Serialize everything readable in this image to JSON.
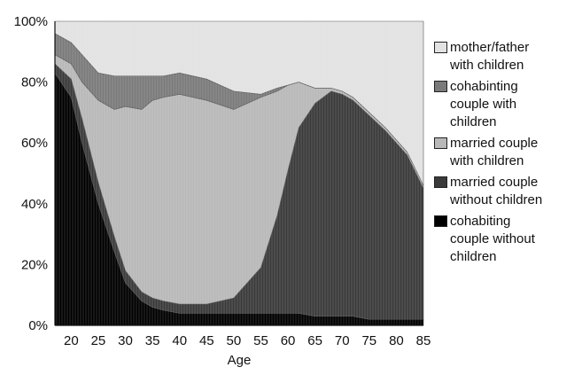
{
  "chart_data": {
    "type": "area",
    "stacked": true,
    "normalized_percent": true,
    "xlabel": "Age",
    "ylabel": "",
    "title": "",
    "xlim": [
      17,
      85
    ],
    "ylim": [
      0,
      100
    ],
    "x_ticks": [
      "20",
      "25",
      "30",
      "35",
      "40",
      "45",
      "50",
      "55",
      "60",
      "65",
      "70",
      "75",
      "80",
      "85"
    ],
    "y_ticks": [
      "0%",
      "20%",
      "40%",
      "60%",
      "80%",
      "100%"
    ],
    "x": [
      17,
      20,
      22,
      25,
      28,
      30,
      33,
      35,
      37,
      40,
      45,
      50,
      55,
      58,
      60,
      62,
      65,
      68,
      70,
      72,
      75,
      78,
      80,
      82,
      85
    ],
    "series": [
      {
        "name": "cohabiting couple without children",
        "color": "#000000",
        "values": [
          83,
          75,
          60,
          40,
          24,
          14,
          8,
          6,
          5,
          4,
          4,
          4,
          4,
          4,
          4,
          4,
          3,
          3,
          3,
          3,
          2,
          2,
          2,
          2,
          2
        ]
      },
      {
        "name": "married couple without children",
        "color": "#3a3a3a",
        "values": [
          3,
          6,
          8,
          7,
          5,
          4,
          3,
          3,
          3,
          3,
          3,
          5,
          15,
          32,
          47,
          61,
          70,
          74,
          73,
          71,
          67,
          62,
          58,
          54,
          43
        ]
      },
      {
        "name": "married couple with children",
        "color": "#b8b8b8",
        "values": [
          3,
          5,
          12,
          27,
          42,
          54,
          60,
          65,
          67,
          69,
          67,
          62,
          56,
          41,
          28,
          15,
          5,
          1,
          1,
          1,
          1,
          1,
          1,
          1,
          1
        ]
      },
      {
        "name": "cohabiting couple with children",
        "color": "#7a7a7a",
        "values": [
          7,
          7,
          9,
          9,
          11,
          10,
          11,
          8,
          7,
          7,
          7,
          6,
          1,
          1,
          0,
          0,
          0,
          0,
          0,
          0,
          0,
          0,
          0,
          0,
          0
        ]
      },
      {
        "name": "mother/father with children",
        "color": "#e2e2e2",
        "values": [
          4,
          7,
          11,
          17,
          18,
          18,
          18,
          18,
          18,
          17,
          19,
          23,
          24,
          22,
          21,
          20,
          22,
          22,
          23,
          25,
          30,
          35,
          39,
          43,
          54
        ]
      }
    ],
    "legend": {
      "placement": "right",
      "entries": [
        {
          "label": "mother/father\nwith children",
          "color": "#e2e2e2"
        },
        {
          "label": "cohabinting\ncouple with\nchildren",
          "color": "#7a7a7a"
        },
        {
          "label": "married couple\nwith children",
          "color": "#b8b8b8"
        },
        {
          "label": "married couple\nwithout children",
          "color": "#3a3a3a"
        },
        {
          "label": "cohabiting\ncouple without\nchildren",
          "color": "#000000"
        }
      ]
    },
    "grid": false
  }
}
